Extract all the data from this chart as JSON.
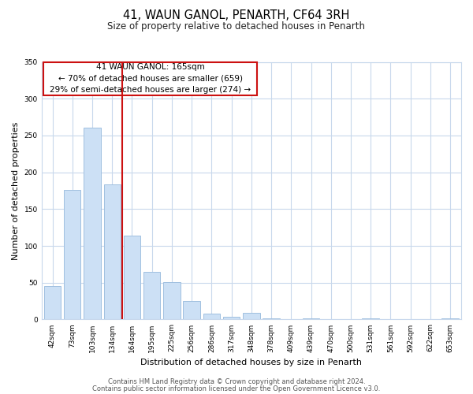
{
  "title": "41, WAUN GANOL, PENARTH, CF64 3RH",
  "subtitle": "Size of property relative to detached houses in Penarth",
  "xlabel": "Distribution of detached houses by size in Penarth",
  "ylabel": "Number of detached properties",
  "bar_labels": [
    "42sqm",
    "73sqm",
    "103sqm",
    "134sqm",
    "164sqm",
    "195sqm",
    "225sqm",
    "256sqm",
    "286sqm",
    "317sqm",
    "348sqm",
    "378sqm",
    "409sqm",
    "439sqm",
    "470sqm",
    "500sqm",
    "531sqm",
    "561sqm",
    "592sqm",
    "622sqm",
    "653sqm"
  ],
  "bar_values": [
    45,
    176,
    261,
    184,
    114,
    65,
    51,
    25,
    8,
    4,
    9,
    2,
    0,
    1,
    0,
    0,
    2,
    0,
    0,
    0,
    2
  ],
  "bar_color": "#cce0f5",
  "bar_edge_color": "#a0c0e0",
  "annotation_text_line1": "41 WAUN GANOL: 165sqm",
  "annotation_text_line2": "← 70% of detached houses are smaller (659)",
  "annotation_text_line3": "29% of semi-detached houses are larger (274) →",
  "vline_x": 3.5,
  "ylim": [
    0,
    350
  ],
  "yticks": [
    0,
    50,
    100,
    150,
    200,
    250,
    300,
    350
  ],
  "footer_line1": "Contains HM Land Registry data © Crown copyright and database right 2024.",
  "footer_line2": "Contains public sector information licensed under the Open Government Licence v3.0.",
  "bg_color": "#ffffff",
  "plot_bg_color": "#ffffff",
  "grid_color": "#c8d8ec",
  "vline_color": "#cc1111",
  "annotation_border_color": "#cc1111",
  "title_fontsize": 10.5,
  "subtitle_fontsize": 8.5,
  "axis_label_fontsize": 8,
  "tick_fontsize": 6.5,
  "annotation_fontsize": 7.5,
  "footer_fontsize": 6
}
